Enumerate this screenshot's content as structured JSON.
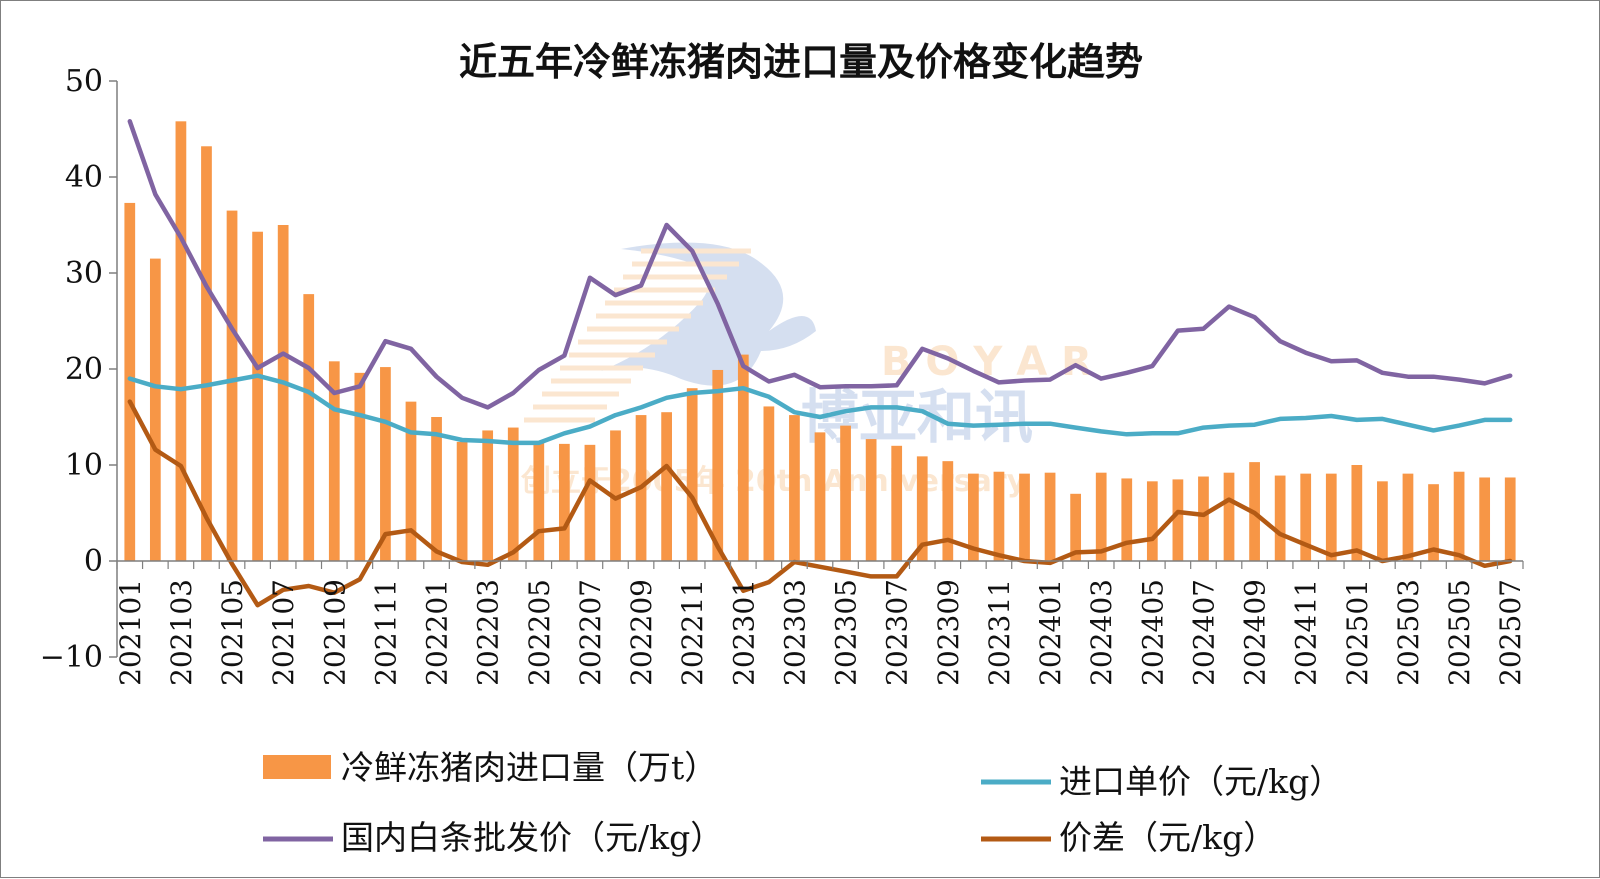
{
  "chart_data": {
    "type": "bar+line",
    "title": "近五年冷鲜冻猪肉进口量及价格变化趋势",
    "x": [
      "202101",
      "202102",
      "202103",
      "202104",
      "202105",
      "202106",
      "202107",
      "202108",
      "202109",
      "202110",
      "202111",
      "202112",
      "202201",
      "202202",
      "202203",
      "202204",
      "202205",
      "202206",
      "202207",
      "202208",
      "202209",
      "202210",
      "202211",
      "202212",
      "202301",
      "202302",
      "202303",
      "202304",
      "202305",
      "202306",
      "202307",
      "202308",
      "202309",
      "202310",
      "202311",
      "202312",
      "202401",
      "202402",
      "202403",
      "202404",
      "202405",
      "202406",
      "202407",
      "202408",
      "202409",
      "202410",
      "202411",
      "202412",
      "202501",
      "202502",
      "202503",
      "202504",
      "202505",
      "202506",
      "202507"
    ],
    "x_tick_labels": [
      "202101",
      "202103",
      "202105",
      "202107",
      "202109",
      "202111",
      "202201",
      "202203",
      "202205",
      "202207",
      "202209",
      "202211",
      "202301",
      "202303",
      "202305",
      "202307",
      "202309",
      "202311",
      "202401",
      "202403",
      "202405",
      "202407",
      "202409",
      "202411",
      "202501",
      "202503",
      "202505",
      "202507"
    ],
    "ylim": [
      -10,
      50
    ],
    "y_ticks": [
      "−10",
      "0",
      "10",
      "20",
      "30",
      "40",
      "50"
    ],
    "grid": false,
    "legend_position": "bottom",
    "series": [
      {
        "name": "冷鲜冻猪肉进口量（万t）",
        "kind": "bar",
        "color": "#f79646",
        "values": [
          37.3,
          31.5,
          45.8,
          43.2,
          36.5,
          34.3,
          35.0,
          27.8,
          20.8,
          19.6,
          20.2,
          16.6,
          15.0,
          12.4,
          13.6,
          13.9,
          12.5,
          12.2,
          12.1,
          13.6,
          15.2,
          15.5,
          18.0,
          19.9,
          21.5,
          16.1,
          15.2,
          13.4,
          14.1,
          12.7,
          12.0,
          10.9,
          10.4,
          9.1,
          9.3,
          9.1,
          9.2,
          7.0,
          9.2,
          8.6,
          8.3,
          8.5,
          8.8,
          9.2,
          10.3,
          8.9,
          9.1,
          9.1,
          10.0,
          8.3,
          9.1,
          8.0,
          9.3,
          8.7,
          8.7
        ]
      },
      {
        "name": "进口单价（元/kg）",
        "kind": "line",
        "color": "#4bacc6",
        "values": [
          19.0,
          18.2,
          17.9,
          18.3,
          18.8,
          19.3,
          18.6,
          17.6,
          15.8,
          15.2,
          14.5,
          13.4,
          13.2,
          12.6,
          12.5,
          12.3,
          12.3,
          13.3,
          14.0,
          15.2,
          16.0,
          17.0,
          17.5,
          17.7,
          18.0,
          17.1,
          15.5,
          15.0,
          15.6,
          16.0,
          16.0,
          15.6,
          14.3,
          14.1,
          14.2,
          14.3,
          14.3,
          13.9,
          13.5,
          13.2,
          13.3,
          13.3,
          13.9,
          14.1,
          14.2,
          14.8,
          14.9,
          15.1,
          14.7,
          14.8,
          14.2,
          13.6,
          14.1,
          14.7,
          14.7
        ]
      },
      {
        "name": "国内白条批发价（元/kg）",
        "kind": "line",
        "color": "#8064a2",
        "values": [
          45.8,
          38.2,
          33.7,
          28.6,
          24.2,
          20.1,
          21.6,
          20.1,
          17.5,
          18.2,
          22.9,
          22.1,
          19.2,
          17.0,
          16.0,
          17.5,
          19.9,
          21.4,
          29.5,
          27.7,
          28.7,
          35.0,
          32.3,
          26.8,
          20.3,
          18.7,
          19.4,
          18.1,
          18.2,
          18.2,
          18.3,
          22.1,
          21.1,
          19.8,
          18.6,
          18.8,
          18.9,
          20.4,
          19.0,
          19.6,
          20.3,
          24.0,
          24.2,
          26.5,
          25.4,
          22.9,
          21.7,
          20.8,
          20.9,
          19.6,
          19.2,
          19.2,
          18.9,
          18.5,
          19.3
        ]
      },
      {
        "name": "价差（元/kg）",
        "kind": "line",
        "color": "#b35a14",
        "values": [
          16.6,
          11.6,
          9.9,
          4.5,
          -0.3,
          -4.6,
          -3.0,
          -2.6,
          -3.3,
          -1.9,
          2.8,
          3.2,
          1.0,
          -0.1,
          -0.4,
          0.9,
          3.1,
          3.4,
          8.4,
          6.5,
          7.7,
          9.9,
          6.6,
          1.5,
          -3.1,
          -2.2,
          -0.1,
          -0.6,
          -1.1,
          -1.6,
          -1.6,
          1.7,
          2.2,
          1.3,
          0.6,
          0.0,
          -0.2,
          0.9,
          1.0,
          1.9,
          2.3,
          5.1,
          4.8,
          6.4,
          5.0,
          2.8,
          1.7,
          0.6,
          1.1,
          0.0,
          0.5,
          1.2,
          0.6,
          -0.5,
          0.0
        ]
      }
    ]
  },
  "watermark": {
    "latin": "B O Y A R",
    "chinese": "博亚和讯",
    "tagline": "创立于2005年 20th Anniversary"
  }
}
